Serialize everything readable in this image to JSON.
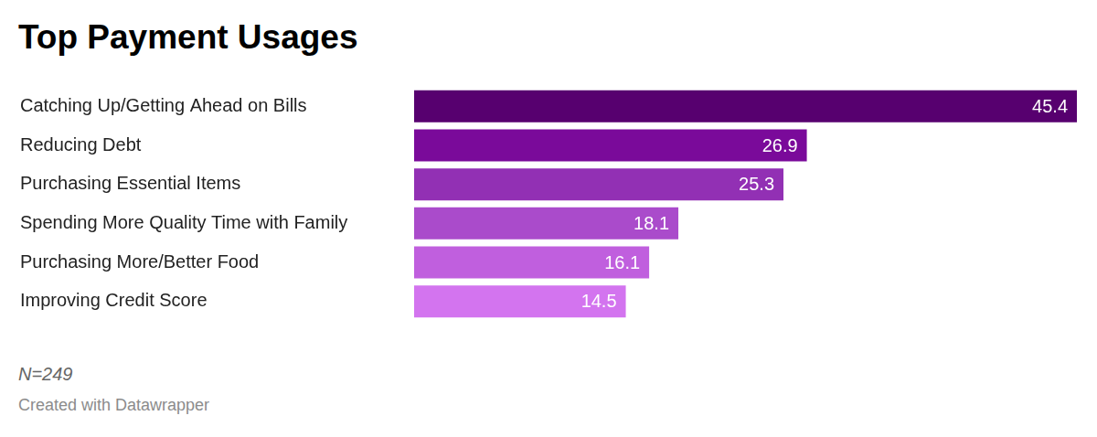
{
  "chart_data": {
    "type": "bar",
    "title": "Top Payment Usages",
    "categories": [
      "Catching Up/Getting Ahead on Bills",
      "Reducing Debt",
      "Purchasing Essential Items",
      "Spending More Quality Time with Family",
      "Purchasing More/Better Food",
      "Improving Credit Score"
    ],
    "values": [
      45.4,
      26.9,
      25.3,
      18.1,
      16.1,
      14.5
    ],
    "colors": [
      "#57006f",
      "#7a0a9a",
      "#9230b4",
      "#aa4bcb",
      "#c05fde",
      "#d374ef"
    ],
    "xlim": [
      0,
      45.4
    ],
    "orientation": "horizontal",
    "data_labels": true,
    "tick_labels": "y",
    "grid": false,
    "annotations": [
      "N=249",
      "Created with Datawrapper"
    ]
  }
}
